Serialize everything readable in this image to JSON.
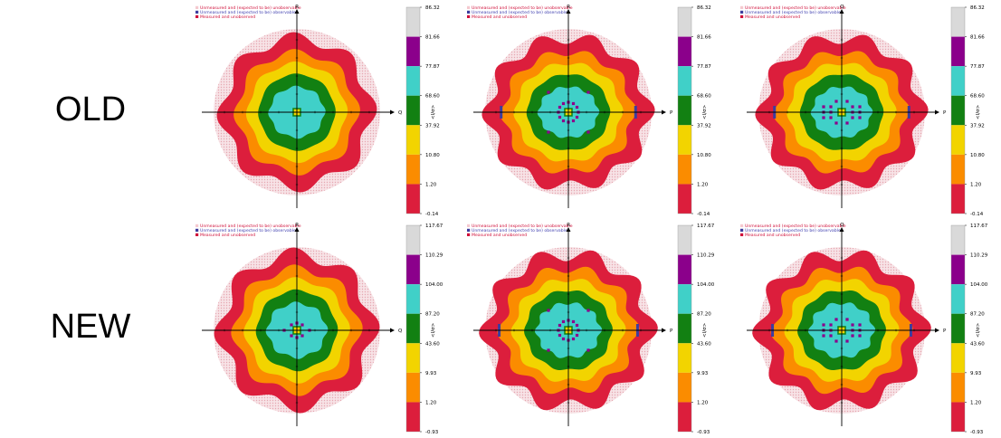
{
  "row_labels": {
    "old": "OLD",
    "new": "NEW"
  },
  "legend_items": [
    {
      "text": "Unmeasured and (expected to be) unobservable",
      "color": "#f4c9cf"
    },
    {
      "text": "Unmeasured and (expected to be) observable",
      "color": "#3d3d9e"
    },
    {
      "text": "Measured and unobserved",
      "color": "#d0103a"
    }
  ],
  "colorbar_colors": [
    "#d9d9d9",
    "#8b008b",
    "#40d0c8",
    "#128012",
    "#f2d400",
    "#fb8c00",
    "#dc1e3c"
  ],
  "chart_data": [
    {
      "type": "heatmap",
      "row": "OLD",
      "column": 1,
      "xlabel": "Q",
      "ylabel": "R",
      "levels": [
        86.32,
        81.66,
        77.87,
        68.6,
        37.92,
        10.8,
        1.2,
        -0.14
      ],
      "level_labels": [
        "86.32",
        "81.66",
        "77.87",
        "68.60",
        "37.92",
        "10.80",
        "1.20",
        "-0.14"
      ],
      "colorbar_label": "<I/σ>",
      "blue_edges": false,
      "purple_dots": "none"
    },
    {
      "type": "heatmap",
      "row": "OLD",
      "column": 2,
      "xlabel": "P",
      "ylabel": "R",
      "levels": [
        86.32,
        81.66,
        77.87,
        68.6,
        37.92,
        10.8,
        1.2,
        -0.14
      ],
      "level_labels": [
        "86.32",
        "81.66",
        "77.87",
        "68.60",
        "37.92",
        "10.80",
        "1.20",
        "-0.14"
      ],
      "colorbar_label": "<I/σ>",
      "blue_edges": true,
      "purple_dots": "ring"
    },
    {
      "type": "heatmap",
      "row": "OLD",
      "column": 3,
      "xlabel": "P",
      "ylabel": "Q",
      "levels": [
        86.32,
        81.66,
        77.87,
        68.6,
        37.92,
        10.8,
        1.2,
        -0.14
      ],
      "level_labels": [
        "86.32",
        "81.66",
        "77.87",
        "68.60",
        "37.92",
        "10.80",
        "1.20",
        "-0.14"
      ],
      "colorbar_label": "<I/σ>",
      "blue_edges": true,
      "purple_dots": "cross"
    },
    {
      "type": "heatmap",
      "row": "NEW",
      "column": 1,
      "xlabel": "Q",
      "ylabel": "R",
      "levels": [
        117.67,
        110.29,
        104.0,
        87.2,
        43.6,
        9.93,
        1.2,
        -0.93
      ],
      "level_labels": [
        "117.67",
        "110.29",
        "104.00",
        "87.20",
        "43.60",
        "9.93",
        "1.20",
        "-0.93"
      ],
      "colorbar_label": "<I/σ>",
      "blue_edges": false,
      "purple_dots": "small"
    },
    {
      "type": "heatmap",
      "row": "NEW",
      "column": 2,
      "xlabel": "P",
      "ylabel": "R",
      "levels": [
        117.67,
        110.29,
        104.0,
        87.2,
        43.6,
        9.93,
        1.2,
        -0.93
      ],
      "level_labels": [
        "117.67",
        "110.29",
        "104.00",
        "87.20",
        "43.60",
        "9.93",
        "1.20",
        "-0.93"
      ],
      "colorbar_label": "<I/σ>",
      "blue_edges": true,
      "purple_dots": "ring"
    },
    {
      "type": "heatmap",
      "row": "NEW",
      "column": 3,
      "xlabel": "P",
      "ylabel": "Q",
      "levels": [
        117.67,
        110.29,
        104.0,
        87.2,
        43.6,
        9.93,
        1.2,
        -0.93
      ],
      "level_labels": [
        "117.67",
        "110.29",
        "104.00",
        "87.20",
        "43.60",
        "9.93",
        "1.20",
        "-0.93"
      ],
      "colorbar_label": "<I/σ>",
      "blue_edges": true,
      "purple_dots": "cross"
    }
  ]
}
